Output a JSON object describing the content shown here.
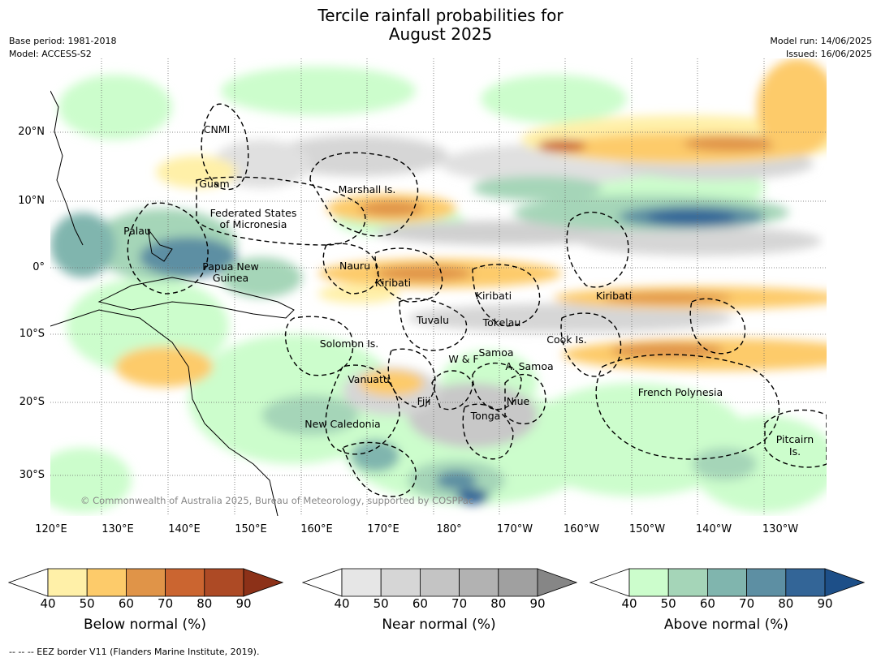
{
  "title_line1": "Tercile rainfall probabilities for",
  "title_line2": "August 2025",
  "meta_left": [
    "Base period: 1981-2018",
    "Model: ACCESS-S2"
  ],
  "meta_right": [
    "Model run: 14/06/2025",
    "Issued: 16/06/2025"
  ],
  "copyright": "© Commonwealth of Australia 2025, Bureau of Meteorology, supported by COSPPac",
  "lon_labels": [
    "120°E",
    "130°E",
    "140°E",
    "150°E",
    "160°E",
    "170°E",
    "180°",
    "170°W",
    "160°W",
    "150°W",
    "140°W",
    "130°W"
  ],
  "lat_labels": [
    "20°N",
    "10°N",
    "0°",
    "10°S",
    "20°S",
    "30°S"
  ],
  "region_labels": [
    {
      "text": "CNMI"
    },
    {
      "text": "Guam"
    },
    {
      "text": "Marshall Is."
    },
    {
      "text": "Federated States"
    },
    {
      "text": "of Micronesia"
    },
    {
      "text": "Palau"
    },
    {
      "text": "Nauru"
    },
    {
      "text": "Papua New"
    },
    {
      "text": "Guinea"
    },
    {
      "text": "Kiribati"
    },
    {
      "text": "Kiribati"
    },
    {
      "text": "Kiribati"
    },
    {
      "text": "Tuvalu"
    },
    {
      "text": "Tokelau"
    },
    {
      "text": "Cook Is."
    },
    {
      "text": "Solomon Is."
    },
    {
      "text": "Samoa"
    },
    {
      "text": "W & F"
    },
    {
      "text": "A. Samoa"
    },
    {
      "text": "Vanuatu"
    },
    {
      "text": "Fiji"
    },
    {
      "text": "Niue"
    },
    {
      "text": "French Polynesia"
    },
    {
      "text": "Tonga"
    },
    {
      "text": "New Caledonia"
    },
    {
      "text": "Pitcairn"
    },
    {
      "text": "Is."
    }
  ],
  "colorbars": [
    {
      "title": "Below normal (%)",
      "ticks": [
        "40",
        "50",
        "60",
        "70",
        "80",
        "90"
      ],
      "colors": [
        "#fff0a8",
        "#fdcb6a",
        "#e09448",
        "#cb6530",
        "#ad4a25"
      ],
      "over": "#8c3118"
    },
    {
      "title": "Near normal (%)",
      "ticks": [
        "40",
        "50",
        "60",
        "70",
        "80",
        "90"
      ],
      "colors": [
        "#e6e6e6",
        "#d6d6d6",
        "#c4c4c4",
        "#b2b2b2",
        "#a0a0a0"
      ],
      "over": "#868686"
    },
    {
      "title": "Above normal (%)",
      "ticks": [
        "40",
        "50",
        "60",
        "70",
        "80",
        "90"
      ],
      "colors": [
        "#ccfdcc",
        "#a5d5b8",
        "#80b5ae",
        "#5d8fa3",
        "#336597"
      ],
      "over": "#1d4f88"
    }
  ],
  "footnote": "--  --  -- EEZ border V11 (Flanders Marine Institute, 2019)."
}
